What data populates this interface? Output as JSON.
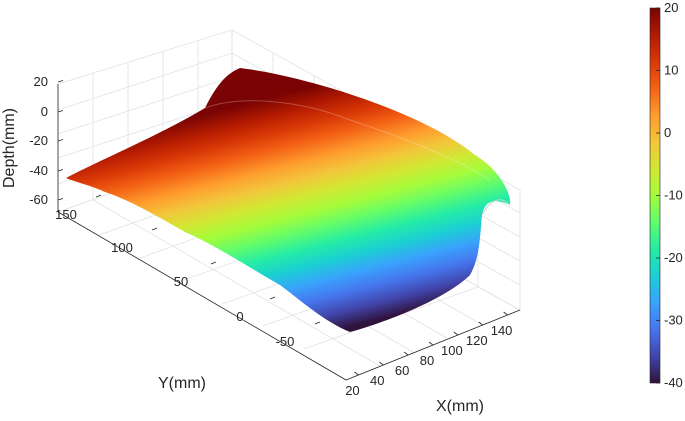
{
  "chart_data": {
    "type": "surface",
    "title": "",
    "xlabel": "X(mm)",
    "ylabel": "Y(mm)",
    "zlabel": "Depth(mm)",
    "x_ticks": [
      "20",
      "40",
      "60",
      "80",
      "100",
      "120",
      "140"
    ],
    "y_ticks": [
      "-50",
      "0",
      "50",
      "100",
      "150"
    ],
    "z_ticks": [
      "20",
      "0",
      "-20",
      "-40",
      "-60"
    ],
    "colorbar": {
      "range": [
        -40,
        20
      ],
      "ticks": [
        "20",
        "10",
        "0",
        "-10",
        "-20",
        "-30",
        "-40"
      ],
      "colormap": "turbo",
      "colors": [
        "#30123b",
        "#4145ab",
        "#4675ed",
        "#39a2fc",
        "#1bcfd4",
        "#24eca6",
        "#61fc6c",
        "#a4fc3b",
        "#d1e834",
        "#f3c63a",
        "#fe9b2d",
        "#f36315",
        "#d93806",
        "#b11901",
        "#7a0403"
      ]
    },
    "grid": true
  }
}
